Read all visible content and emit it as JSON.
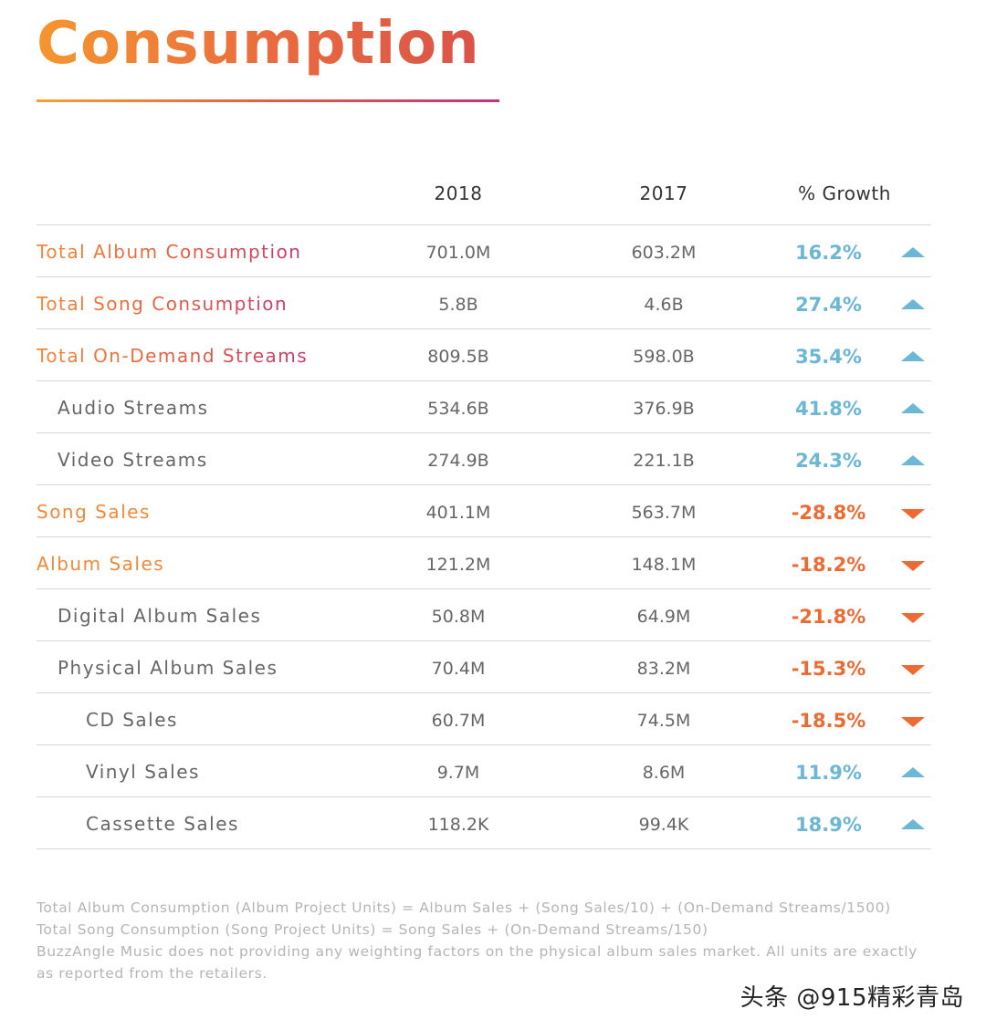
{
  "title": "Consumption",
  "header": {
    "col_2018": "2018",
    "col_2017": "2017",
    "col_growth": "% Growth"
  },
  "rows": [
    {
      "label": "Total Album Consumption",
      "v2018": "701.0M",
      "v2017": "603.2M",
      "growth": "16.2%",
      "direction": "up"
    },
    {
      "label": "Total Song Consumption",
      "v2018": "5.8B",
      "v2017": "4.6B",
      "growth": "27.4%",
      "direction": "up"
    },
    {
      "label": "Total On-Demand Streams",
      "v2018": "809.5B",
      "v2017": "598.0B",
      "growth": "35.4%",
      "direction": "up"
    },
    {
      "label": "Audio Streams",
      "v2018": "534.6B",
      "v2017": "376.9B",
      "growth": "41.8%",
      "direction": "up"
    },
    {
      "label": "Video Streams",
      "v2018": "274.9B",
      "v2017": "221.1B",
      "growth": "24.3%",
      "direction": "up"
    },
    {
      "label": "Song Sales",
      "v2018": "401.1M",
      "v2017": "563.7M",
      "growth": "-28.8%",
      "direction": "down"
    },
    {
      "label": "Album Sales",
      "v2018": "121.2M",
      "v2017": "148.1M",
      "growth": "-18.2%",
      "direction": "down"
    },
    {
      "label": "Digital Album Sales",
      "v2018": "50.8M",
      "v2017": "64.9M",
      "growth": "-21.8%",
      "direction": "down"
    },
    {
      "label": "Physical Album Sales",
      "v2018": "70.4M",
      "v2017": "83.2M",
      "growth": "-15.3%",
      "direction": "down"
    },
    {
      "label": "CD Sales",
      "v2018": "60.7M",
      "v2017": "74.5M",
      "growth": "-18.5%",
      "direction": "down"
    },
    {
      "label": "Vinyl Sales",
      "v2018": "9.7M",
      "v2017": "8.6M",
      "growth": "11.9%",
      "direction": "up"
    },
    {
      "label": "Cassette Sales",
      "v2018": "118.2K",
      "v2017": "99.4K",
      "growth": "18.9%",
      "direction": "up"
    }
  ],
  "notes": {
    "line1": "Total Album Consumption (Album Project Units) = Album Sales + (Song Sales/10) + (On-Demand Streams/1500)",
    "line2": "Total Song Consumption (Song Project Units) = Song Sales + (On-Demand Streams/150)",
    "line3": "BuzzAngle Music does not providing any weighting factors on the physical album sales market. All units are exactly as reported from the retailers."
  },
  "watermark": "头条 @915精彩青岛",
  "colors": {
    "up": "#6bb7d6",
    "down": "#ee6a33",
    "accent_orange": "#f08a3a",
    "accent_pink": "#c83a6e"
  }
}
